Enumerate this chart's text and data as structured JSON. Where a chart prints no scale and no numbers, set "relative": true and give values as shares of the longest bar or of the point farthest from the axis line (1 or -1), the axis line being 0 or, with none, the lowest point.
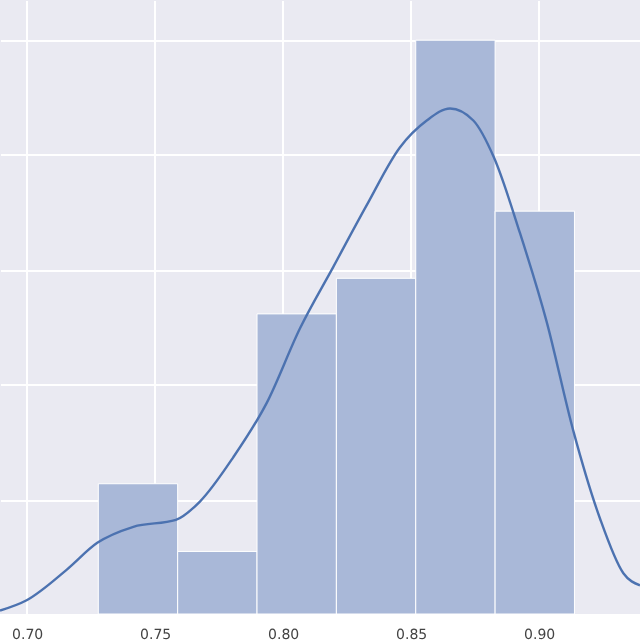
{
  "chart_data": {
    "type": "histogram",
    "relative": true,
    "grid": true,
    "xlim": [
      0.6896,
      0.9396
    ],
    "xticks": [
      {
        "value": 0.7,
        "label": "0.70"
      },
      {
        "value": 0.75,
        "label": "0.75"
      },
      {
        "value": 0.8,
        "label": "0.80"
      },
      {
        "value": 0.85,
        "label": "0.85"
      },
      {
        "value": 0.9,
        "label": "0.90"
      }
    ],
    "bins": [
      0.728,
      0.759,
      0.79,
      0.821,
      0.852,
      0.883,
      0.914
    ],
    "values": [
      0.227,
      0.109,
      0.523,
      0.585,
      1,
      0.702
    ],
    "color": "#a9b8d8",
    "series": [
      {
        "type": "line",
        "color": "#4c72b0",
        "x": [
          0.6896,
          0.7,
          0.7156,
          0.7276,
          0.7417,
          0.7583,
          0.7677,
          0.7807,
          0.7938,
          0.8068,
          0.8198,
          0.8328,
          0.8458,
          0.8563,
          0.8654,
          0.8745,
          0.8826,
          0.8927,
          0.9031,
          0.9135,
          0.924,
          0.9331,
          0.9396
        ],
        "values": [
          0.006,
          0.024,
          0.077,
          0.124,
          0.152,
          0.164,
          0.196,
          0.273,
          0.368,
          0.498,
          0.605,
          0.712,
          0.813,
          0.86,
          0.881,
          0.86,
          0.795,
          0.664,
          0.51,
          0.32,
          0.166,
          0.071,
          0.05
        ]
      }
    ]
  }
}
